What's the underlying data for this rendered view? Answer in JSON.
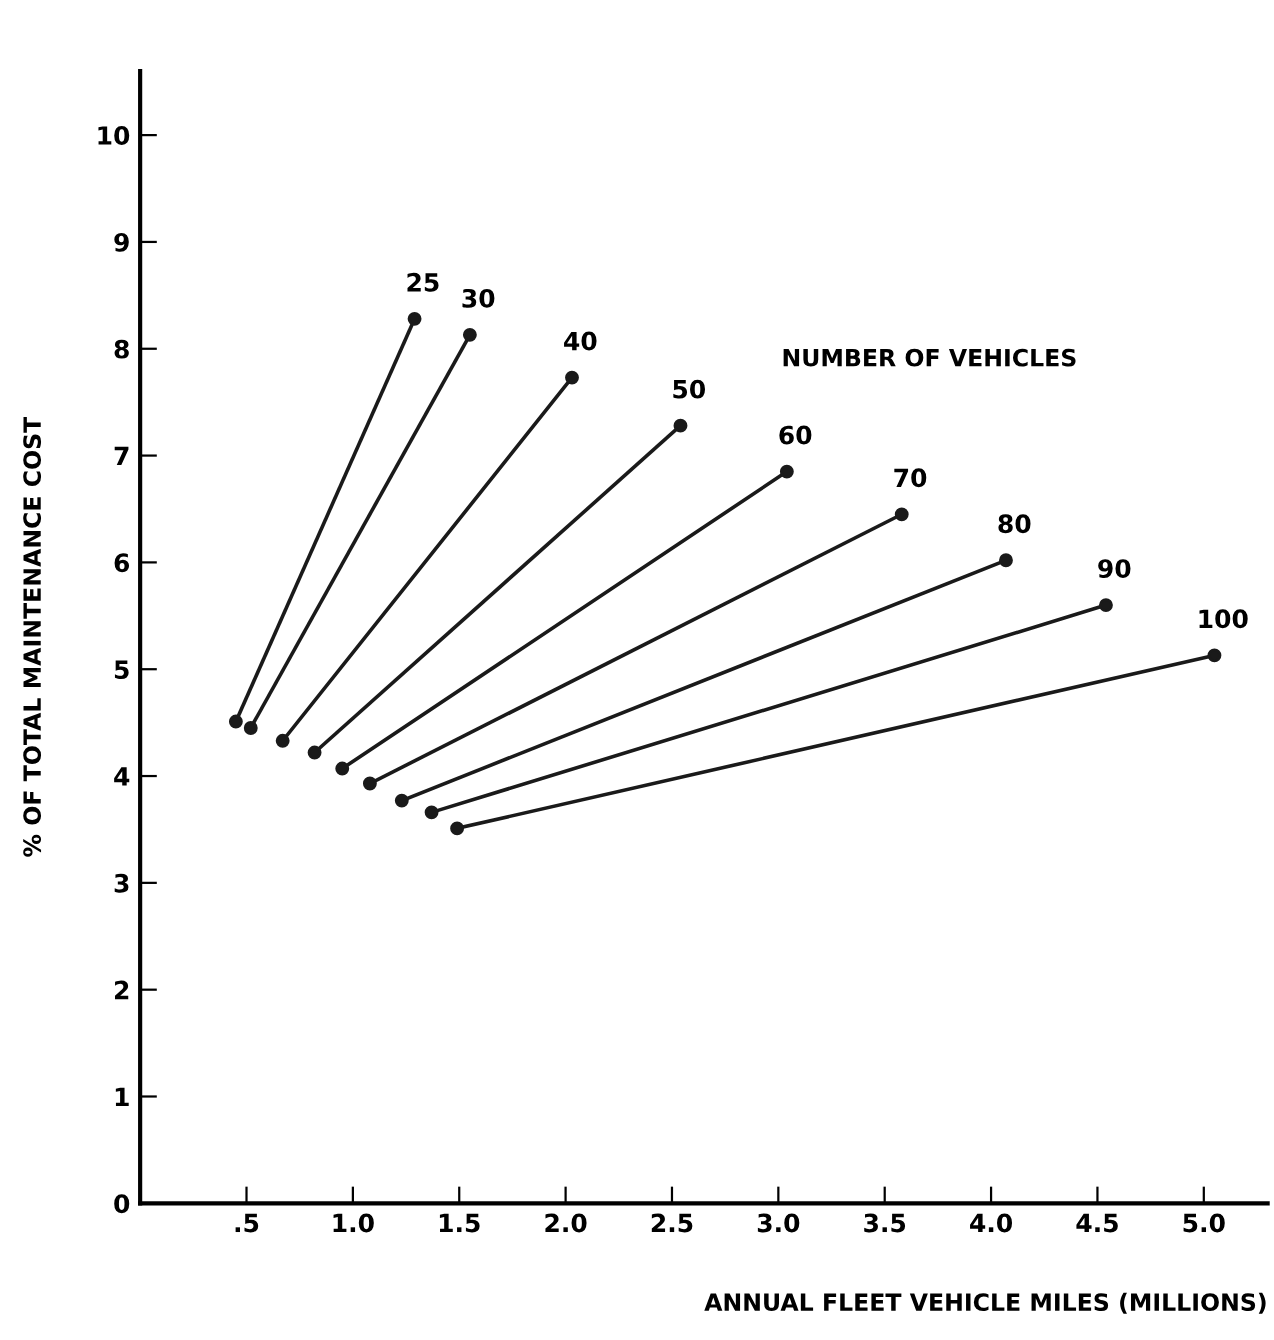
{
  "chart_data": {
    "type": "line",
    "xlabel": "ANNUAL FLEET VEHICLE MILES (MILLIONS)",
    "ylabel": "% OF TOTAL MAINTENANCE COST",
    "annotations": [
      "NUMBER OF VEHICLES"
    ],
    "xlim": [
      0,
      5.3
    ],
    "ylim": [
      0,
      10.6
    ],
    "xticks": [
      {
        "value": 0.5,
        "label": ".5"
      },
      {
        "value": 1.0,
        "label": "1.0"
      },
      {
        "value": 1.5,
        "label": "1.5"
      },
      {
        "value": 2.0,
        "label": "2.0"
      },
      {
        "value": 2.5,
        "label": "2.5"
      },
      {
        "value": 3.0,
        "label": "3.0"
      },
      {
        "value": 3.5,
        "label": "3.5"
      },
      {
        "value": 4.0,
        "label": "4.0"
      },
      {
        "value": 4.5,
        "label": "4.5"
      },
      {
        "value": 5.0,
        "label": "5.0"
      }
    ],
    "yticks": [
      0,
      1,
      2,
      3,
      4,
      5,
      6,
      7,
      8,
      9,
      10
    ],
    "grid": false,
    "legend": false,
    "marker": "circle",
    "line_style": "solid",
    "series": [
      {
        "name": "25",
        "color": "#1a1a1a",
        "x": [
          0.45,
          1.29
        ],
        "values": [
          4.51,
          8.28
        ]
      },
      {
        "name": "30",
        "color": "#1a1a1a",
        "x": [
          0.52,
          1.55
        ],
        "values": [
          4.45,
          8.13
        ]
      },
      {
        "name": "40",
        "color": "#1a1a1a",
        "x": [
          0.67,
          2.03
        ],
        "values": [
          4.33,
          7.73
        ]
      },
      {
        "name": "50",
        "color": "#1a1a1a",
        "x": [
          0.82,
          2.54
        ],
        "values": [
          4.22,
          7.28
        ]
      },
      {
        "name": "60",
        "color": "#1a1a1a",
        "x": [
          0.95,
          3.04
        ],
        "values": [
          4.07,
          6.85
        ]
      },
      {
        "name": "70",
        "color": "#1a1a1a",
        "x": [
          1.08,
          3.58
        ],
        "values": [
          3.93,
          6.45
        ]
      },
      {
        "name": "80",
        "color": "#1a1a1a",
        "x": [
          1.23,
          4.07
        ],
        "values": [
          3.77,
          6.02
        ]
      },
      {
        "name": "90",
        "color": "#1a1a1a",
        "x": [
          1.37,
          4.54
        ],
        "values": [
          3.66,
          5.6
        ]
      },
      {
        "name": "100",
        "color": "#1a1a1a",
        "x": [
          1.49,
          5.05
        ],
        "values": [
          3.51,
          5.13
        ]
      }
    ]
  }
}
